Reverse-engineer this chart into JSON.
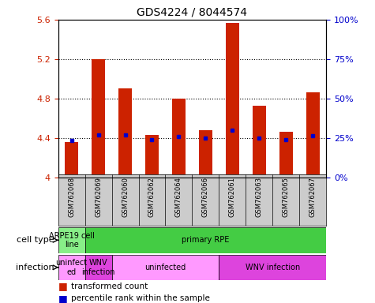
{
  "title": "GDS4224 / 8044574",
  "samples": [
    "GSM762068",
    "GSM762069",
    "GSM762060",
    "GSM762062",
    "GSM762064",
    "GSM762066",
    "GSM762061",
    "GSM762063",
    "GSM762065",
    "GSM762067"
  ],
  "red_values": [
    4.36,
    5.2,
    4.9,
    4.43,
    4.8,
    4.48,
    5.57,
    4.73,
    4.46,
    4.86
  ],
  "blue_values": [
    4.37,
    4.43,
    4.43,
    4.38,
    4.41,
    4.4,
    4.48,
    4.4,
    4.38,
    4.42
  ],
  "ylim_left": [
    4.0,
    5.6
  ],
  "ylim_right": [
    0,
    100
  ],
  "yticks_left": [
    4.0,
    4.4,
    4.8,
    5.2,
    5.6
  ],
  "yticks_right": [
    0,
    25,
    50,
    75,
    100
  ],
  "ytick_labels_left": [
    "4",
    "4.4",
    "4.8",
    "5.2",
    "5.6"
  ],
  "ytick_labels_right": [
    "0%",
    "25%",
    "50%",
    "75%",
    "100%"
  ],
  "bar_color": "#cc2200",
  "dot_color": "#0000cc",
  "background_color": "#ffffff",
  "cell_type_colors": [
    "#88ee88",
    "#44cc44"
  ],
  "infection_colors": [
    "#ff99ff",
    "#dd44dd"
  ],
  "cell_type_labels": [
    "ARPE19 cell\nline",
    "primary RPE"
  ],
  "infection_labels": [
    "uninfect\ned",
    "WNV\ninfection",
    "uninfected",
    "WNV infection"
  ],
  "left_tick_color": "#cc2200",
  "right_tick_color": "#0000cc",
  "xlabel_bg": "#cccccc",
  "legend_red_label": "transformed count",
  "legend_blue_label": "percentile rank within the sample",
  "cell_type_row_label": "cell type",
  "infection_row_label": "infection"
}
